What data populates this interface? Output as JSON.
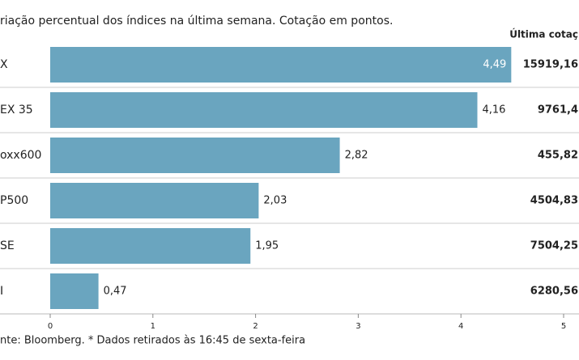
{
  "chart_data": {
    "type": "bar",
    "title": "riação percentual dos índices na última semana. Cotação em pontos.",
    "categories": [
      "X",
      "EX 35",
      "oxx600",
      "P500",
      "SE",
      "I"
    ],
    "values": [
      4.49,
      4.16,
      2.82,
      2.03,
      1.95,
      0.47
    ],
    "value_labels": [
      "4,49",
      "4,16",
      "2,82",
      "2,03",
      "1,95",
      "0,47"
    ],
    "color": "#6aa5bf",
    "xlim": [
      0,
      5
    ],
    "xticks": [
      0,
      1,
      2,
      3,
      4,
      5
    ],
    "column_header": "Última cotaç",
    "column_values": [
      "15919,16",
      "9761,4",
      "455,82",
      "4504,83",
      "7504,25",
      "6280,56"
    ],
    "source": "nte: Bloomberg.  * Dados retirados às 16:45 de sexta-feira"
  }
}
